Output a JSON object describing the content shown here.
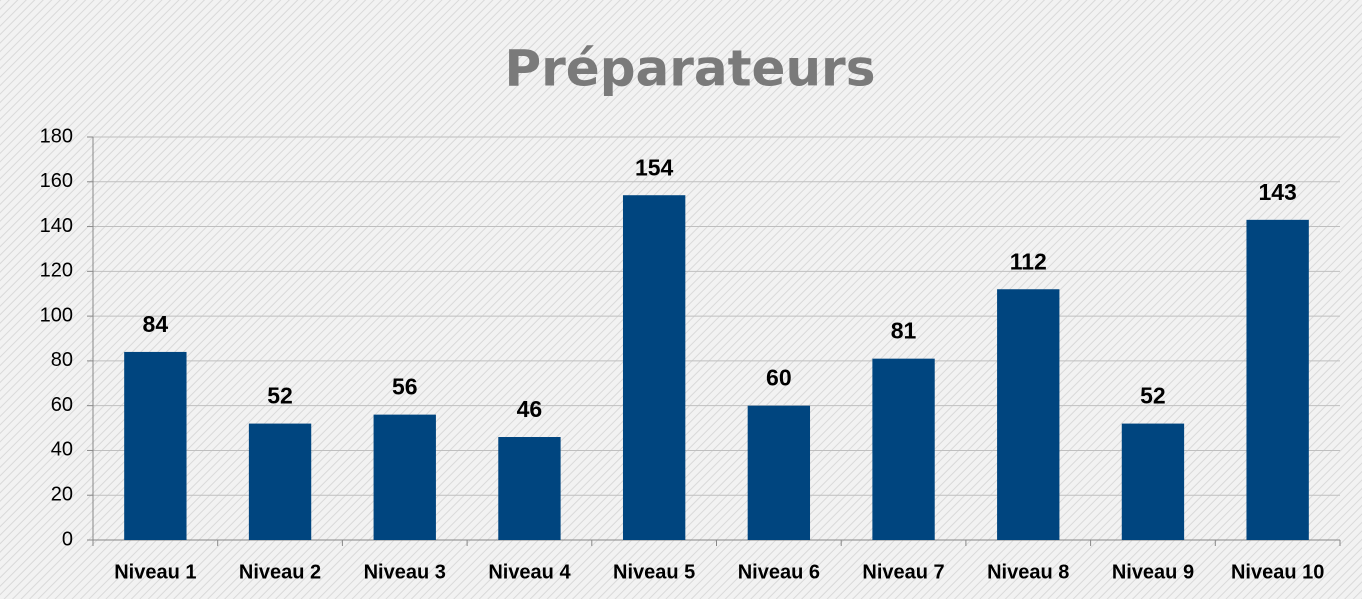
{
  "chart_data": {
    "type": "bar",
    "title": "Préparateurs",
    "categories": [
      "Niveau 1",
      "Niveau 2",
      "Niveau 3",
      "Niveau 4",
      "Niveau 5",
      "Niveau 6",
      "Niveau 7",
      "Niveau 8",
      "Niveau 9",
      "Niveau 10"
    ],
    "values": [
      84,
      52,
      56,
      46,
      154,
      60,
      81,
      112,
      52,
      143
    ],
    "color": "#00457f",
    "ylim": [
      0,
      180
    ],
    "yticks": [
      0,
      20,
      40,
      60,
      80,
      100,
      120,
      140,
      160,
      180
    ],
    "grid": true
  }
}
